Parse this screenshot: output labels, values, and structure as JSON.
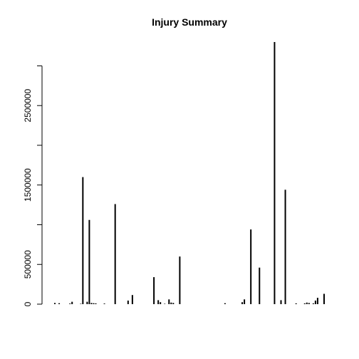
{
  "chart_data": {
    "type": "bar",
    "title": "Injury Summary",
    "xlabel": "",
    "ylabel": "",
    "ylim": [
      0,
      3300000
    ],
    "yticks": [
      0,
      500000,
      1500000,
      2500000
    ],
    "ytick_labels": [
      "0",
      "500000",
      "1500000",
      "2500000"
    ],
    "x_axis_shown": false,
    "grid": false,
    "bar_color": "#000000",
    "values": [
      0,
      15000,
      0,
      12000,
      0,
      0,
      0,
      0,
      8000,
      30000,
      0,
      0,
      0,
      5000,
      1600000,
      0,
      30000,
      1060000,
      15000,
      12000,
      10000,
      0,
      0,
      0,
      8000,
      0,
      0,
      0,
      0,
      1260000,
      0,
      0,
      0,
      0,
      0,
      45000,
      0,
      115000,
      0,
      0,
      0,
      0,
      0,
      0,
      0,
      0,
      0,
      340000,
      0,
      50000,
      25000,
      0,
      5000,
      0,
      60000,
      20000,
      15000,
      0,
      0,
      600000,
      0,
      0,
      0,
      0,
      0,
      0,
      0,
      0,
      0,
      0,
      0,
      0,
      0,
      0,
      0,
      0,
      0,
      0,
      0,
      0,
      12000,
      0,
      0,
      0,
      0,
      0,
      0,
      0,
      25000,
      60000,
      0,
      0,
      940000,
      0,
      0,
      0,
      460000,
      0,
      0,
      0,
      0,
      0,
      0,
      3300000,
      0,
      0,
      50000,
      0,
      1440000,
      0,
      0,
      0,
      0,
      10000,
      0,
      0,
      0,
      10000,
      20000,
      15000,
      0,
      10000,
      45000,
      80000,
      0,
      0,
      130000,
      0
    ]
  }
}
